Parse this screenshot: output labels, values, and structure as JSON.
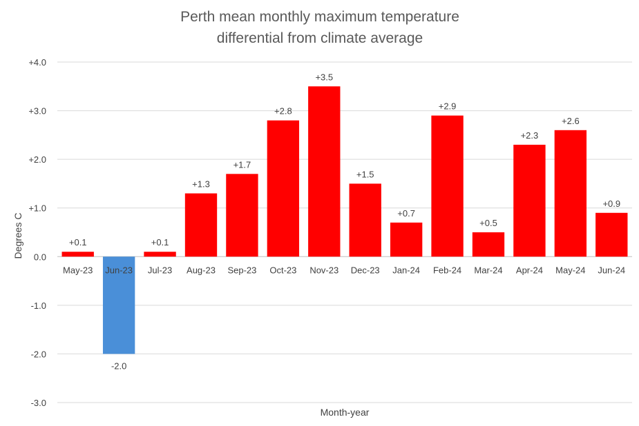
{
  "chart_data": {
    "type": "bar",
    "title": [
      "Perth mean monthly maximum temperature",
      "differential from climate average"
    ],
    "xlabel": "Month-year",
    "ylabel": "Degrees C",
    "ylim": [
      -3.0,
      4.0
    ],
    "yticks": [
      4.0,
      3.0,
      2.0,
      1.0,
      0.0,
      -1.0,
      -2.0,
      -3.0
    ],
    "ytick_labels": [
      "+4.0",
      "+3.0",
      "+2.0",
      "+1.0",
      "0.0",
      "-1.0",
      "-2.0",
      "-3.0"
    ],
    "grid": true,
    "categories": [
      "May-23",
      "Jun-23",
      "Jul-23",
      "Aug-23",
      "Sep-23",
      "Oct-23",
      "Nov-23",
      "Dec-23",
      "Jan-24",
      "Feb-24",
      "Mar-24",
      "Apr-24",
      "May-24",
      "Jun-24"
    ],
    "values": [
      0.1,
      -2.0,
      0.1,
      1.3,
      1.7,
      2.8,
      3.5,
      1.5,
      0.7,
      2.9,
      0.5,
      2.3,
      2.6,
      0.9
    ],
    "data_labels": [
      "+0.1",
      "-2.0",
      "+0.1",
      "+1.3",
      "+1.7",
      "+2.8",
      "+3.5",
      "+1.5",
      "+0.7",
      "+2.9",
      "+0.5",
      "+2.3",
      "+2.6",
      "+0.9"
    ],
    "colors": {
      "positive": "#ff0000",
      "negative": "#4a8fd8",
      "grid": "#d9d9d9",
      "text": "#404040",
      "title": "#595959"
    }
  }
}
